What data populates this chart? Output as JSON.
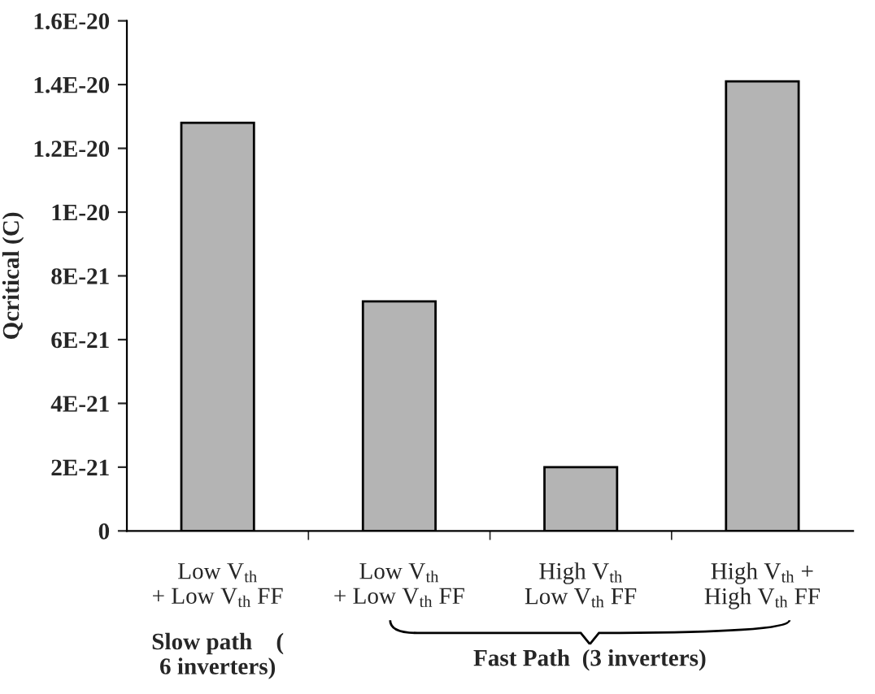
{
  "chart_data": {
    "type": "bar",
    "ylabel": "Qcritical (C)",
    "categories": [
      "Low V$_{th}$\n+ Low V$_{th}$ FF",
      "Low V$_{th}$\n+ Low V$_{th}$ FF",
      "High V$_{th}$\nLow V$_{th}$ FF",
      "High V$_{th}$ +\nHigh V$_{th}$ FF"
    ],
    "values": [
      1.28e-20,
      7.2e-21,
      2e-21,
      1.41e-20
    ],
    "color": "#b4b4b4",
    "ylim": [
      0,
      1.6e-20
    ],
    "yticks": [
      {
        "value": 0,
        "label": "0"
      },
      {
        "value": 2e-21,
        "label": "2E-21"
      },
      {
        "value": 4e-21,
        "label": "4E-21"
      },
      {
        "value": 6e-21,
        "label": "6E-21"
      },
      {
        "value": 8e-21,
        "label": "8E-21"
      },
      {
        "value": 1e-20,
        "label": "1E-20"
      },
      {
        "value": 1.2e-20,
        "label": "1.2E-20"
      },
      {
        "value": 1.4e-20,
        "label": "1.4E-20"
      },
      {
        "value": 1.6e-20,
        "label": "1.6E-20"
      }
    ],
    "annotations": [
      "Slow path    (\n6 inverters)",
      "Fast Path  (3 inverters)"
    ],
    "grid": false,
    "legend": false
  }
}
